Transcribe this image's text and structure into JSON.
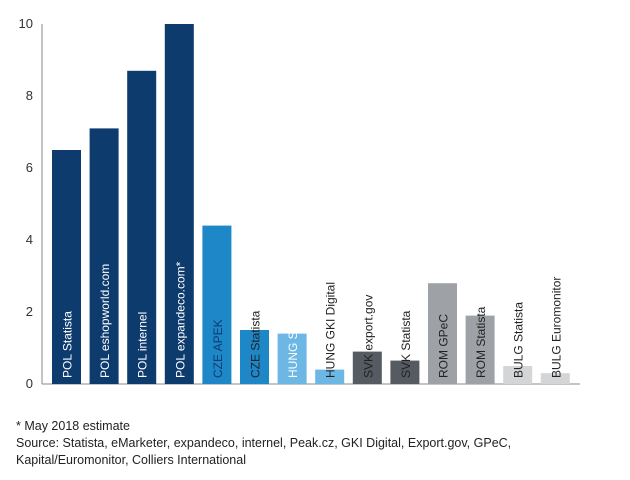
{
  "chart_data": {
    "type": "bar",
    "categories": [
      "POL Statista",
      "POL eshopworld.com",
      "POL internel",
      "POL expandeco.com*",
      "CZE APEK",
      "CZE Statista",
      "HUNG Statista",
      "HUNG GKI Digital",
      "SVK export.gov",
      "SVK Statista",
      "ROM GPeC",
      "ROM Statista",
      "BULG Statista",
      "BULG Euromonitor"
    ],
    "values": [
      6.5,
      7.1,
      8.7,
      10.0,
      4.4,
      1.5,
      1.4,
      0.4,
      0.9,
      0.65,
      2.8,
      1.9,
      0.5,
      0.3
    ],
    "colors": [
      "#0d3b6e",
      "#0d3b6e",
      "#0d3b6e",
      "#0d3b6e",
      "#1d87c7",
      "#1d87c7",
      "#6cb7e4",
      "#6cb7e4",
      "#555b61",
      "#555b61",
      "#9ea2a6",
      "#9ea2a6",
      "#d3d5d7",
      "#d3d5d7"
    ],
    "label_colors": [
      "#ffffff",
      "#ffffff",
      "#ffffff",
      "#ffffff",
      "#0d3b6e",
      "#222222",
      "#ffffff",
      "#222222",
      "#222222",
      "#222222",
      "#222222",
      "#222222",
      "#222222",
      "#222222"
    ],
    "yticks": [
      0,
      2,
      4,
      6,
      8,
      10
    ],
    "ylim": [
      0,
      10
    ],
    "title": "",
    "xlabel": "",
    "ylabel": "",
    "grid": false,
    "legend": "none"
  },
  "footnotes": {
    "estimate_note": "* May 2018 estimate",
    "source_line1": "Source: Statista, eMarketer, expandeco, internel, Peak.cz, GKI Digital, Export.gov, GPeC,",
    "source_line2": "Kapital/Euromonitor, Colliers International"
  }
}
